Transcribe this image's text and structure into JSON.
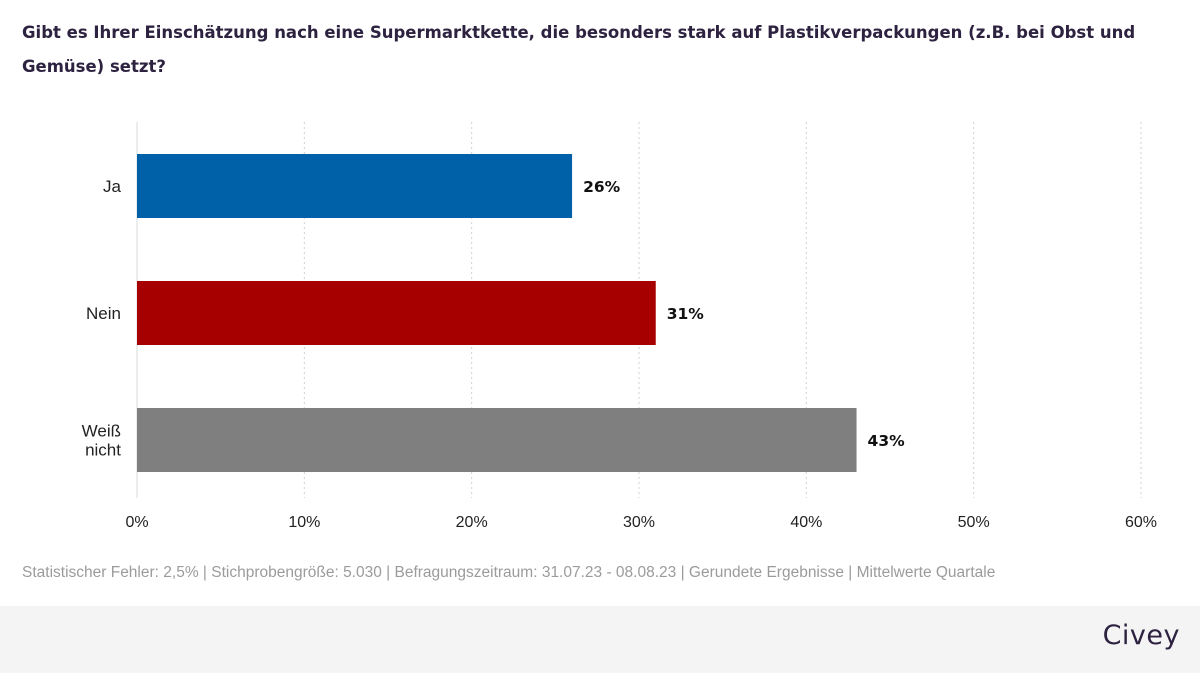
{
  "header": {
    "title": "Gibt es Ihrer Einschätzung nach eine Supermarktkette, die besonders stark auf Plastikverpackungen (z.B. bei Obst und Gemüse) setzt?"
  },
  "footer": {
    "note": "Statistischer Fehler: 2,5% | Stichprobengröße: 5.030 | Befragungszeitraum: 31.07.23 - 08.08.23 | Gerundete Ergebnisse | Mittelwerte Quartale",
    "brand": "Civey"
  },
  "chart_data": {
    "type": "bar",
    "orientation": "horizontal",
    "categories": [
      "Ja",
      "Nein",
      "Weiß nicht"
    ],
    "values": [
      26,
      31,
      43
    ],
    "value_labels": [
      "26%",
      "31%",
      "43%"
    ],
    "colors": [
      "#0060a8",
      "#a60000",
      "#7f7f7f"
    ],
    "xlim": [
      0,
      60
    ],
    "x_ticks": [
      0,
      10,
      20,
      30,
      40,
      50,
      60
    ],
    "x_tick_labels": [
      "0%",
      "10%",
      "20%",
      "30%",
      "40%",
      "50%",
      "60%"
    ],
    "grid": true
  }
}
